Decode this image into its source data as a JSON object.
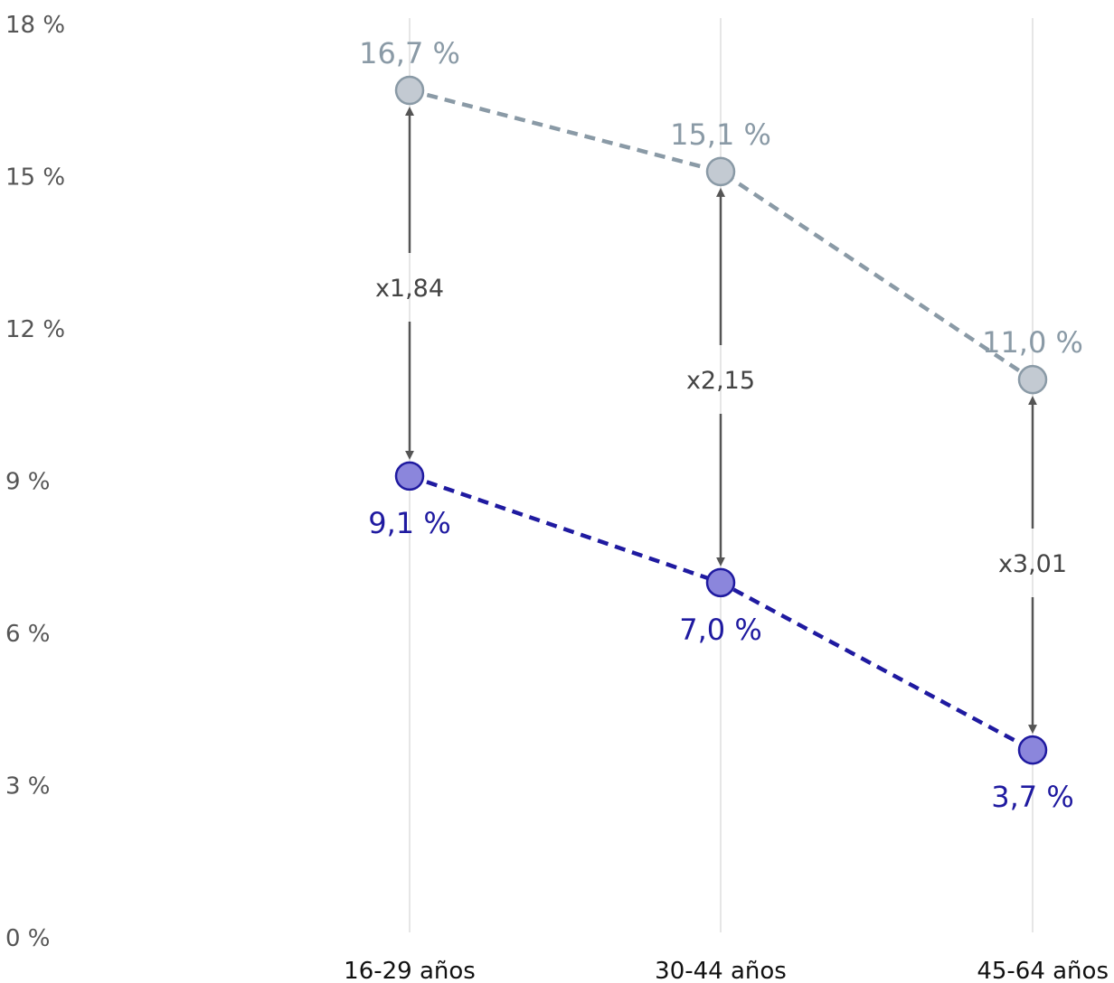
{
  "chart_data": {
    "type": "line",
    "title": "",
    "xlabel": "",
    "ylabel": "",
    "ylim": [
      0,
      18
    ],
    "yticks": [
      0,
      3,
      6,
      9,
      12,
      15,
      18
    ],
    "ytick_labels": [
      "0 %",
      "3 %",
      "6 %",
      "9 %",
      "12 %",
      "15 %",
      "18 %"
    ],
    "categories": [
      "16-29 años",
      "30-44 años",
      "45-64 años"
    ],
    "grid": "vertical lines at categories",
    "series": [
      {
        "values": [
          16.7,
          15.1,
          11.0
        ],
        "labels": [
          "16,7 %",
          "15,1 %",
          "11,0 %"
        ],
        "color": "#8a9aa6",
        "fill": "#c3cad2"
      },
      {
        "values": [
          9.1,
          7.0,
          3.7
        ],
        "labels": [
          "9,1 %",
          "7,0 %",
          "3,7 %"
        ],
        "color": "#1f1aa0",
        "fill": "#8b86dc"
      }
    ],
    "ratios": [
      "x1,84",
      "x2,15",
      "x3,01"
    ]
  }
}
